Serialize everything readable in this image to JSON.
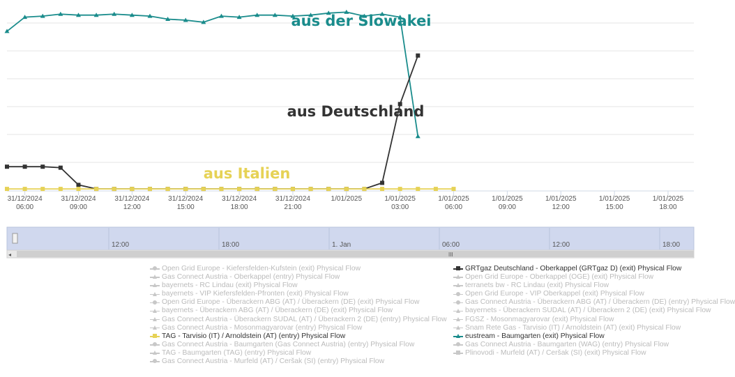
{
  "chart_data": {
    "type": "line",
    "x_labels": [
      [
        "31/12/2024",
        "06:00"
      ],
      [
        "31/12/2024",
        "09:00"
      ],
      [
        "31/12/2024",
        "12:00"
      ],
      [
        "31/12/2024",
        "15:00"
      ],
      [
        "31/12/2024",
        "18:00"
      ],
      [
        "31/12/2024",
        "21:00"
      ],
      [
        "1/01/2025",
        ""
      ],
      [
        "1/01/2025",
        "03:00"
      ],
      [
        "1/01/2025",
        "06:00"
      ],
      [
        "1/01/2025",
        "09:00"
      ],
      [
        "1/01/2025",
        "12:00"
      ],
      [
        "1/01/2025",
        "15:00"
      ],
      [
        "1/01/2025",
        "18:00"
      ]
    ],
    "x_range_hours": [
      5,
      18
    ],
    "y_range": [
      0,
      100
    ],
    "grid": true,
    "series": [
      {
        "name": "eustream - Baumgarten (exit) Physical Flow",
        "color": "#1a8c8c",
        "marker": "triangle",
        "start_hour": 5,
        "step_hours": 1,
        "values": [
          79,
          86,
          86.5,
          87.5,
          87,
          87,
          87.5,
          87,
          86.5,
          85,
          84.5,
          83.5,
          86.5,
          86,
          87,
          87,
          86.5,
          87,
          88,
          88.5,
          86.5,
          87.5,
          86,
          27
        ]
      },
      {
        "name": "GRTgaz Deutschland - Oberkappel (GRTgaz D) (exit) Physical Flow",
        "color": "#333333",
        "marker": "square",
        "start_hour": 5,
        "step_hours": 1,
        "values": [
          12,
          12,
          12,
          11.5,
          3,
          1,
          1,
          1,
          1,
          1,
          1,
          1,
          1,
          1,
          1,
          1,
          1,
          1,
          1,
          1,
          1,
          4,
          43,
          67
        ]
      },
      {
        "name": "TAG - Tarvisio (IT) / Arnoldstein (AT) (entry) Physical Flow",
        "color": "#e6d256",
        "marker": "square",
        "start_hour": 5,
        "step_hours": 1,
        "values": [
          1,
          1,
          1,
          1,
          1,
          1,
          1,
          1,
          1,
          1,
          1,
          1,
          1,
          1,
          1,
          1,
          1,
          1,
          1,
          1,
          1,
          1,
          1,
          1,
          1,
          1
        ]
      }
    ],
    "annotations": [
      {
        "text": "aus der Slowakei",
        "color": "#1a8c8c"
      },
      {
        "text": "aus Deutschland",
        "color": "#333333"
      },
      {
        "text": "aus Italien",
        "color": "#e6d256"
      }
    ],
    "navigator": {
      "labels": [
        "12:00",
        "18:00",
        "1. Jan",
        "06:00",
        "12:00",
        "18:00"
      ]
    }
  },
  "legend": {
    "left": [
      {
        "label": "Open Grid Europe - Kiefersfelden-Kufstein (exit) Physical Flow",
        "marker": "circle",
        "active": false
      },
      {
        "label": "Gas Connect Austria - Oberkappel (entry) Physical Flow",
        "marker": "triangle",
        "active": false
      },
      {
        "label": "bayernets - RC Lindau (exit) Physical Flow",
        "marker": "triangle",
        "active": false
      },
      {
        "label": "bayernets - VIP Kiefersfelden-Pfronten (exit) Physical Flow",
        "marker": "triangle",
        "active": false
      },
      {
        "label": "Open Grid Europe - Überackern ABG (AT) / Überackern (DE) (exit) Physical Flow",
        "marker": "circle",
        "active": false
      },
      {
        "label": "bayernets - Überackern ABG (AT) / Überackern (DE) (exit) Physical Flow",
        "marker": "triangle",
        "active": false
      },
      {
        "label": "Gas Connect Austria - Überackern SUDAL (AT) / Überackern 2 (DE) (entry) Physical Flow",
        "marker": "triangle",
        "active": false
      },
      {
        "label": "Gas Connect Austria - Mosonmagyarovar (entry) Physical Flow",
        "marker": "triangle",
        "active": false
      },
      {
        "label": "TAG - Tarvisio (IT) / Arnoldstein (AT) (entry) Physical Flow",
        "marker": "square",
        "active": true,
        "color": "#e6d256"
      },
      {
        "label": "Gas Connect Austria - Baumgarten (Gas Connect Austria) (entry) Physical Flow",
        "marker": "circle",
        "active": false
      },
      {
        "label": "TAG - Baumgarten (TAG) (entry) Physical Flow",
        "marker": "triangle",
        "active": false
      },
      {
        "label": "Gas Connect Austria - Murfeld (AT) / Ceršak (SI) (entry) Physical Flow",
        "marker": "circle",
        "active": false
      }
    ],
    "right": [
      {
        "label": "GRTgaz Deutschland - Oberkappel (GRTgaz D) (exit) Physical Flow",
        "marker": "square",
        "active": true,
        "color": "#333333"
      },
      {
        "label": "Open Grid Europe - Oberkappel (OGE) (exit) Physical Flow",
        "marker": "triangle",
        "active": false
      },
      {
        "label": "terranets bw - RC Lindau (exit) Physical Flow",
        "marker": "triangle",
        "active": false
      },
      {
        "label": "Open Grid Europe - VIP Oberkappel (exit) Physical Flow",
        "marker": "circle",
        "active": false
      },
      {
        "label": "Gas Connect Austria - Überackern ABG (AT) / Überackern (DE) (entry) Physical Flow",
        "marker": "circle",
        "active": false
      },
      {
        "label": "bayernets - Überackern SUDAL (AT) / Überackern 2 (DE) (exit) Physical Flow",
        "marker": "triangle",
        "active": false
      },
      {
        "label": "FGSZ - Mosonmagyarovar (exit) Physical Flow",
        "marker": "triangle",
        "active": false
      },
      {
        "label": "Snam Rete Gas - Tarvisio (IT) / Arnoldstein (AT) (exit) Physical Flow",
        "marker": "triangle",
        "active": false
      },
      {
        "label": "eustream - Baumgarten (exit) Physical Flow",
        "marker": "triangle",
        "active": true,
        "color": "#1a8c8c"
      },
      {
        "label": "Gas Connect Austria - Baumgarten (WAG) (entry) Physical Flow",
        "marker": "circle",
        "active": false
      },
      {
        "label": "Plinovodi - Murfeld (AT) / Ceršak (SI) (exit) Physical Flow",
        "marker": "square",
        "active": false
      }
    ]
  }
}
